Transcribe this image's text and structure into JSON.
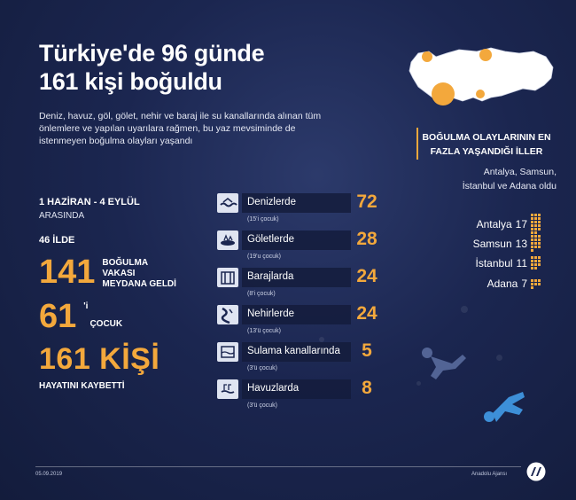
{
  "header": {
    "title_line1": "Türkiye'de 96 günde",
    "title_line2": "161 kişi boğuldu",
    "intro": "Deniz, havuz, göl, gölet, nehir ve baraj ile su kanallarında alınan tüm önlemlere ve yapılan uyarılara rağmen, bu yaz mevsiminde de istenmeyen boğulma olayları yaşandı"
  },
  "stats": {
    "period": "1 HAZİRAN - 4 EYLÜL",
    "period_sub": "ARASINDA",
    "provinces": "46 İLDE",
    "cases_num": "141",
    "cases_label_1": "BOĞULMA",
    "cases_label_2": "VAKASI",
    "cases_label_3": "MEYDANA GELDİ",
    "children_num": "61",
    "children_sup": "'i",
    "children_label": "ÇOCUK",
    "deaths": "161 KİŞİ",
    "deaths_label": "HAYATINI KAYBETTİ"
  },
  "categories": [
    {
      "label": "Denizlerde",
      "sub": "(15'i çocuk)",
      "value": "72",
      "icon": "sea-icon"
    },
    {
      "label": "Göletlerde",
      "sub": "(19'u çocuk)",
      "value": "28",
      "icon": "pond-icon"
    },
    {
      "label": "Barajlarda",
      "sub": "(8'i çocuk)",
      "value": "24",
      "icon": "dam-icon"
    },
    {
      "label": "Nehirlerde",
      "sub": "(13'ü çocuk)",
      "value": "24",
      "icon": "river-icon"
    },
    {
      "label": "Sulama kanallarında",
      "sub": "(3'ü çocuk)",
      "value": "5",
      "icon": "canal-icon"
    },
    {
      "label": "Havuzlarda",
      "sub": "(3'ü çocuk)",
      "value": "8",
      "icon": "pool-icon"
    }
  ],
  "right": {
    "title_1": "BOĞULMA OLAYLARININ EN",
    "title_2": "FAZLA YAŞANDIĞI İLLER",
    "sub_1": "Antalya, Samsun,",
    "sub_2": "İstanbul ve Adana oldu",
    "provinces": [
      {
        "name": "Antalya",
        "value": "17",
        "count": 17
      },
      {
        "name": "Samsun",
        "value": "13",
        "count": 13
      },
      {
        "name": "İstanbul",
        "value": "11",
        "count": 11
      },
      {
        "name": "Adana",
        "value": "7",
        "count": 7
      }
    ]
  },
  "footer": {
    "date": "05.09.2019",
    "agency": "Anadolu Ajansı"
  },
  "colors": {
    "accent": "#f3a83c",
    "background": "#1b2650"
  }
}
